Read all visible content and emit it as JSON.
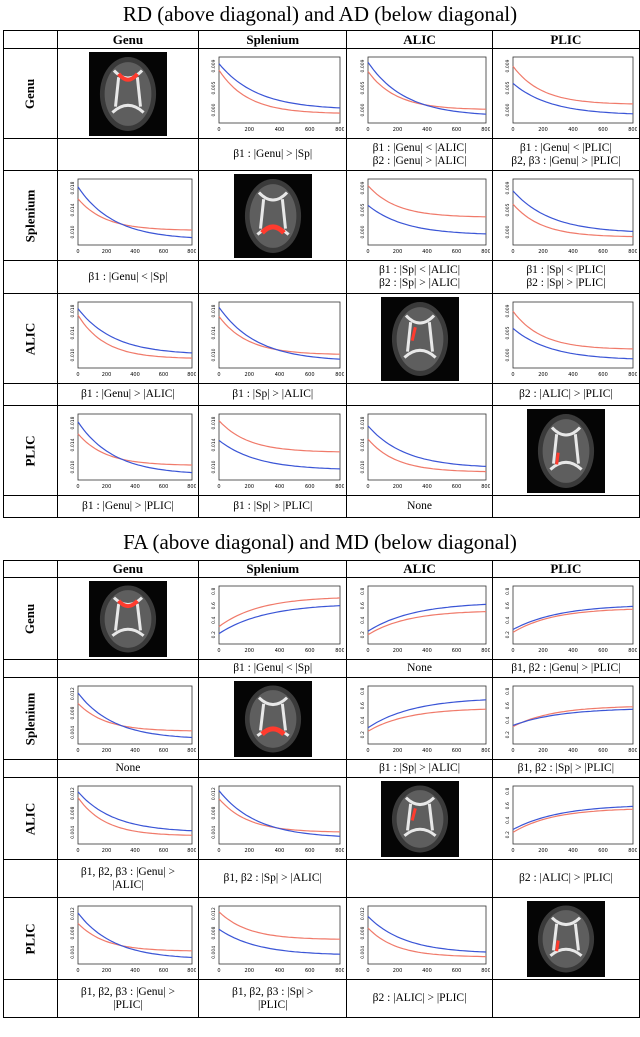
{
  "panels": [
    {
      "title": "RD (above diagonal) and AD (below diagonal)",
      "columns": [
        "Genu",
        "Splenium",
        "ALIC",
        "PLIC"
      ],
      "rows": [
        "Genu",
        "Splenium",
        "ALIC",
        "PLIC"
      ],
      "conditions": [
        [
          "",
          [
            "β1 : |Genu| > |Sp|"
          ],
          [
            "β1 : |Genu| < |ALIC|",
            "β2 : |Genu| > |ALIC|"
          ],
          [
            "β1 : |Genu| < |PLIC|",
            "β2, β3 : |Genu| > |PLIC|"
          ]
        ],
        [
          [
            "β1 : |Genu| < |Sp|"
          ],
          "",
          [
            "β1 : |Sp| < |ALIC|",
            "β2 : |Sp| > |ALIC|"
          ],
          [
            "β1 : |Sp| < |PLIC|",
            "β2 : |Sp| > |PLIC|"
          ]
        ],
        [
          [
            "β1 : |Genu| > |ALIC|"
          ],
          [
            "β1 : |Sp| > |ALIC|"
          ],
          "",
          [
            "β2 : |ALIC| > |PLIC|"
          ]
        ],
        [
          [
            "β1 : |Genu| > |PLIC|"
          ],
          [
            "β1 : |Sp| > |PLIC|"
          ],
          [
            "None"
          ],
          ""
        ]
      ]
    },
    {
      "title": "FA (above diagonal) and MD (below diagonal)",
      "columns": [
        "Genu",
        "Splenium",
        "ALIC",
        "PLIC"
      ],
      "rows": [
        "Genu",
        "Splenium",
        "ALIC",
        "PLIC"
      ],
      "conditions": [
        [
          "",
          [
            "β1 : |Genu| < |Sp|"
          ],
          [
            "None"
          ],
          [
            "β1, β2 : |Genu| > |PLIC|"
          ]
        ],
        [
          [
            "None"
          ],
          "",
          [
            "β1 : |Sp| > |ALIC|"
          ],
          [
            "β1, β2 : |Sp| > |PLIC|"
          ]
        ],
        [
          [
            "β1, β2, β3 : |Genu| >",
            "|ALIC|"
          ],
          [
            "β1, β2 : |Sp| > |ALIC|"
          ],
          "",
          [
            "β2 : |ALIC| > |PLIC|"
          ]
        ],
        [
          [
            "β1, β2, β3 : |Genu| >",
            "|PLIC|"
          ],
          [
            "β1, β2, β3 : |Sp| >",
            "|PLIC|"
          ],
          [
            "β2 : |ALIC| > |PLIC|"
          ],
          ""
        ]
      ]
    }
  ],
  "axis_ticks": {
    "x": [
      "0",
      "200",
      "400",
      "600",
      "800"
    ],
    "rd_y": [
      "0.000",
      "0.005",
      "0.009"
    ],
    "ad_y": [
      "0.010",
      "0.014",
      "0.018"
    ],
    "fa_y": [
      "0.2",
      "0.4",
      "0.6",
      "0.8"
    ],
    "md_y": [
      "0.004",
      "0.008",
      "0.012"
    ]
  },
  "colors": {
    "blue": "#3a55d6",
    "red": "#f07a6a"
  },
  "chart_data": [
    {
      "type": "line",
      "measure": "RD",
      "row": "Genu",
      "col": "Splenium",
      "curves": "decay"
    },
    {
      "type": "line",
      "measure": "RD",
      "row": "Genu",
      "col": "ALIC",
      "curves": "decay"
    },
    {
      "type": "line",
      "measure": "RD",
      "row": "Genu",
      "col": "PLIC",
      "curves": "decay"
    },
    {
      "type": "line",
      "measure": "RD",
      "row": "Splenium",
      "col": "ALIC",
      "curves": "decay"
    },
    {
      "type": "line",
      "measure": "RD",
      "row": "Splenium",
      "col": "PLIC",
      "curves": "decay"
    },
    {
      "type": "line",
      "measure": "RD",
      "row": "ALIC",
      "col": "PLIC",
      "curves": "decay"
    },
    {
      "type": "line",
      "measure": "AD",
      "row": "Splenium",
      "col": "Genu",
      "curves": "decay"
    },
    {
      "type": "line",
      "measure": "AD",
      "row": "ALIC",
      "col": "Genu",
      "curves": "decay"
    },
    {
      "type": "line",
      "measure": "AD",
      "row": "ALIC",
      "col": "Splenium",
      "curves": "decay"
    },
    {
      "type": "line",
      "measure": "AD",
      "row": "PLIC",
      "col": "Genu",
      "curves": "decay"
    },
    {
      "type": "line",
      "measure": "AD",
      "row": "PLIC",
      "col": "Splenium",
      "curves": "decay"
    },
    {
      "type": "line",
      "measure": "AD",
      "row": "PLIC",
      "col": "ALIC",
      "curves": "decay"
    },
    {
      "type": "line",
      "measure": "FA",
      "row": "Genu",
      "col": "Splenium",
      "curves": "growth"
    },
    {
      "type": "line",
      "measure": "FA",
      "row": "Genu",
      "col": "ALIC",
      "curves": "growth"
    },
    {
      "type": "line",
      "measure": "FA",
      "row": "Genu",
      "col": "PLIC",
      "curves": "growth"
    },
    {
      "type": "line",
      "measure": "FA",
      "row": "Splenium",
      "col": "ALIC",
      "curves": "growth"
    },
    {
      "type": "line",
      "measure": "FA",
      "row": "Splenium",
      "col": "PLIC",
      "curves": "growth"
    },
    {
      "type": "line",
      "measure": "FA",
      "row": "ALIC",
      "col": "PLIC",
      "curves": "growth"
    },
    {
      "type": "line",
      "measure": "MD",
      "row": "Splenium",
      "col": "Genu",
      "curves": "decay"
    },
    {
      "type": "line",
      "measure": "MD",
      "row": "ALIC",
      "col": "Genu",
      "curves": "decay"
    },
    {
      "type": "line",
      "measure": "MD",
      "row": "ALIC",
      "col": "Splenium",
      "curves": "decay"
    },
    {
      "type": "line",
      "measure": "MD",
      "row": "PLIC",
      "col": "Genu",
      "curves": "decay"
    },
    {
      "type": "line",
      "measure": "MD",
      "row": "PLIC",
      "col": "Splenium",
      "curves": "decay"
    },
    {
      "type": "line",
      "measure": "MD",
      "row": "PLIC",
      "col": "ALIC",
      "curves": "decay"
    }
  ]
}
